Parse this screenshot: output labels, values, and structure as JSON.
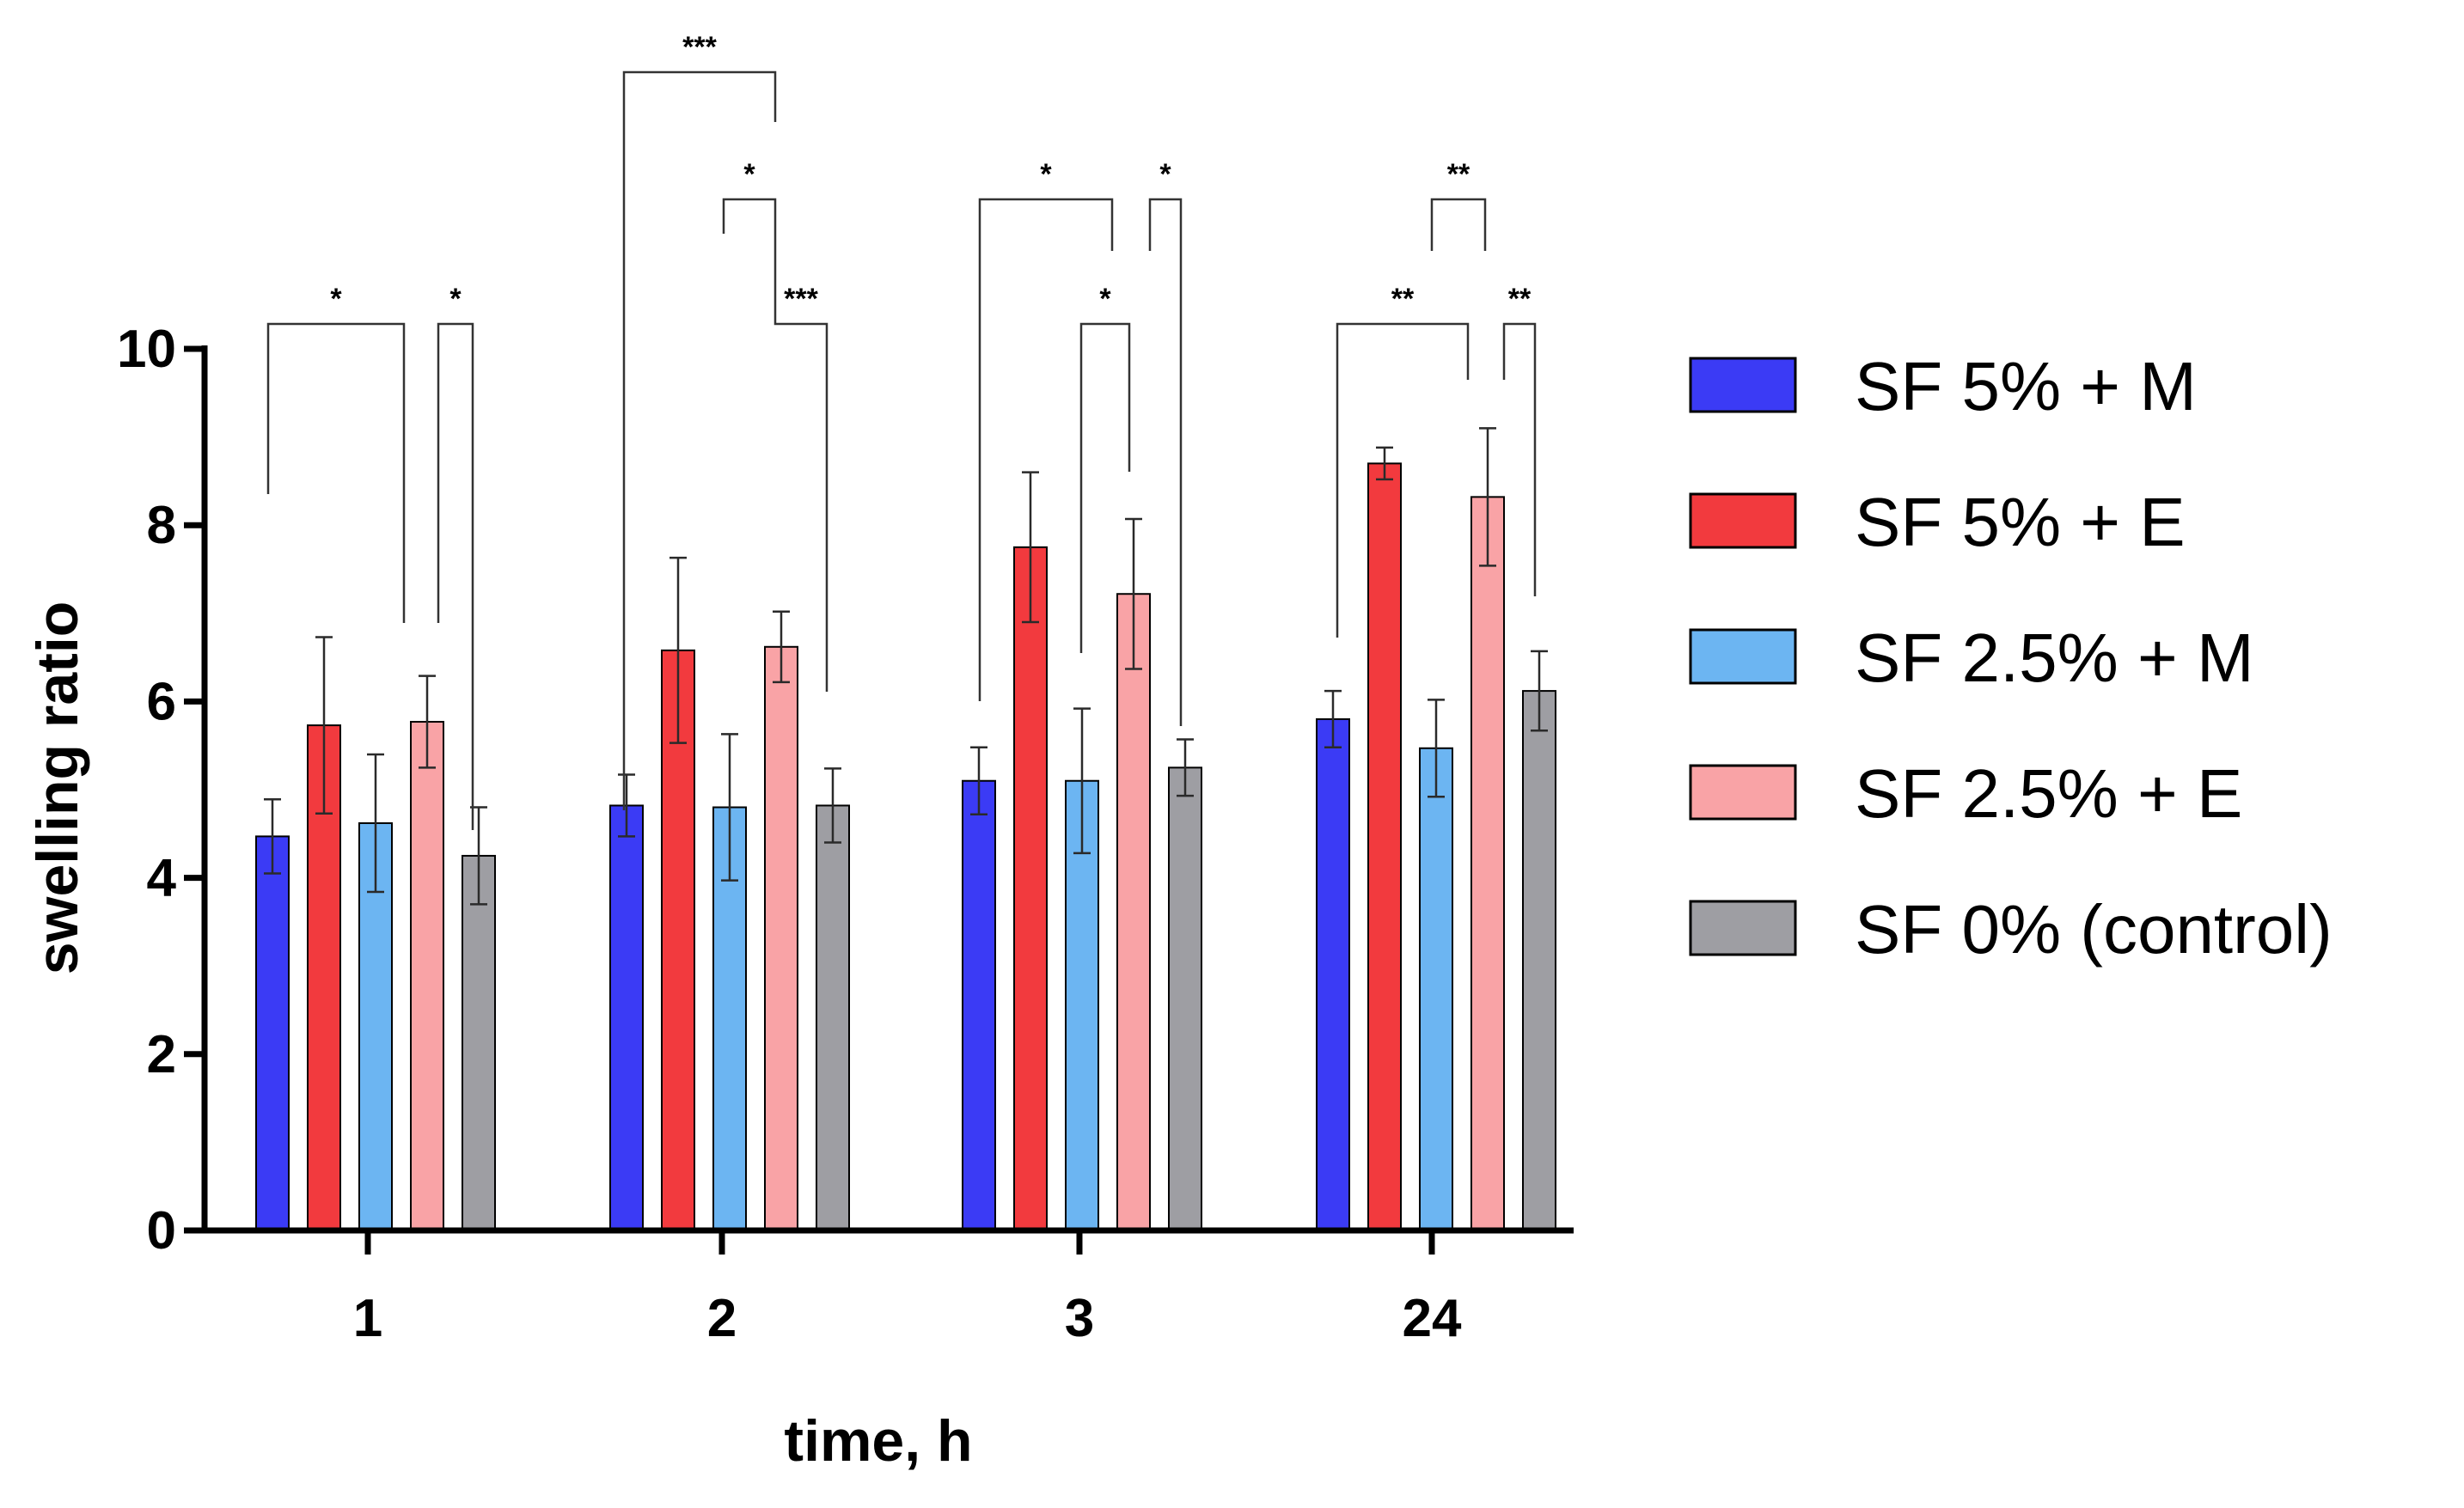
{
  "chart_data": {
    "type": "bar",
    "title": "",
    "xlabel": "time, h",
    "ylabel": "swelling ratio",
    "ylim": [
      0,
      10
    ],
    "yticks": [
      0,
      2,
      4,
      6,
      8,
      10
    ],
    "categories": [
      "1",
      "2",
      "3",
      "24"
    ],
    "legend_position": "right",
    "series": [
      {
        "name": "SF 5% + M",
        "color": "#3b3bf5",
        "values": [
          4.47,
          4.82,
          5.1,
          5.8
        ],
        "errors": [
          0.42,
          0.35,
          0.38,
          0.32
        ]
      },
      {
        "name": "SF 5% + E",
        "color": "#f23a3e",
        "values": [
          5.73,
          6.58,
          7.75,
          8.7
        ],
        "errors": [
          1.0,
          1.05,
          0.85,
          0.18
        ]
      },
      {
        "name": "SF 2.5% + M",
        "color": "#6cb5f2",
        "values": [
          4.62,
          4.8,
          5.1,
          5.47
        ],
        "errors": [
          0.78,
          0.83,
          0.82,
          0.55
        ]
      },
      {
        "name": "SF 2.5% + E",
        "color": "#f9a3a6",
        "values": [
          5.77,
          6.62,
          7.22,
          8.32
        ],
        "errors": [
          0.52,
          0.4,
          0.85,
          0.78
        ]
      },
      {
        "name": "SF 0% (control)",
        "color": "#9e9ea3",
        "values": [
          4.25,
          4.82,
          5.25,
          6.12
        ],
        "errors": [
          0.55,
          0.42,
          0.32,
          0.45
        ]
      }
    ],
    "significance": [
      {
        "category": "1",
        "from_series": 0,
        "to_series": 3,
        "label": "*"
      },
      {
        "category": "1",
        "from_series": 3,
        "to_series": 4,
        "label": "*"
      },
      {
        "category": "2",
        "from_series": 0,
        "to_series": 3,
        "label": "***"
      },
      {
        "category": "2",
        "from_series": 2,
        "to_series": 3,
        "label": "*"
      },
      {
        "category": "2",
        "from_series": 3,
        "to_series": 4,
        "label": "***"
      },
      {
        "category": "3",
        "from_series": 0,
        "to_series": 3,
        "label": "*"
      },
      {
        "category": "3",
        "from_series": 3,
        "to_series": 4,
        "label": "*"
      },
      {
        "category": "3",
        "from_series": 2,
        "to_series": 3,
        "label": "*"
      },
      {
        "category": "24",
        "from_series": 2,
        "to_series": 3,
        "label": "**"
      },
      {
        "category": "24",
        "from_series": 0,
        "to_series": 3,
        "label": "**"
      },
      {
        "category": "24",
        "from_series": 3,
        "to_series": 4,
        "label": "**"
      }
    ]
  }
}
